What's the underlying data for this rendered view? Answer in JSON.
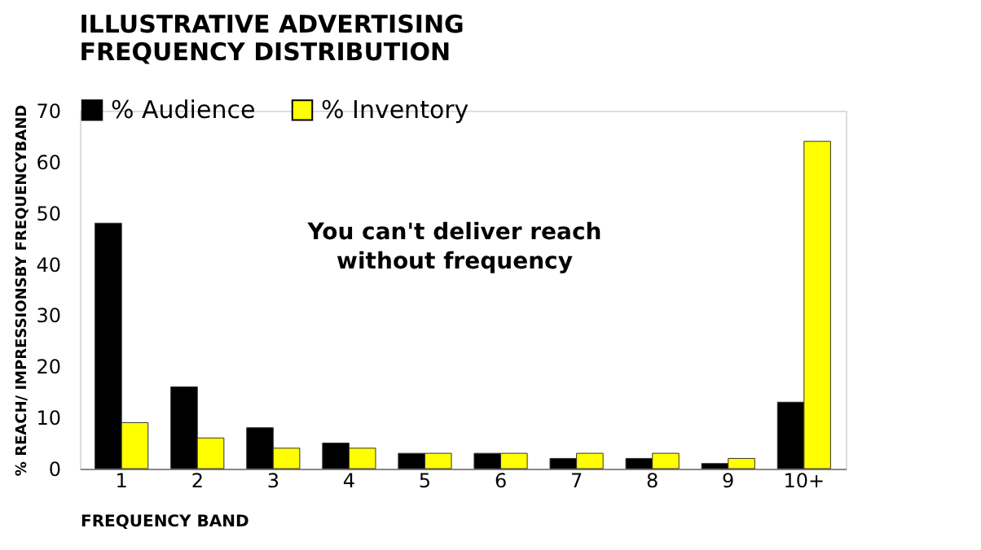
{
  "chart_data": {
    "type": "bar",
    "title": "ILLUSTRATIVE ADVERTISING\nFREQUENCY DISTRIBUTION",
    "xlabel": "FREQUENCY BAND",
    "ylabel": "% REACH/ IMPRESSIONSBY FREQUENCYBAND",
    "categories": [
      "1",
      "2",
      "3",
      "4",
      "5",
      "6",
      "7",
      "8",
      "9",
      "10+"
    ],
    "series": [
      {
        "name": "% Audience",
        "color": "#000000",
        "values": [
          48,
          16,
          8,
          5,
          3,
          3,
          2,
          2,
          1,
          13
        ]
      },
      {
        "name": "% Inventory",
        "color": "#ffff00",
        "values": [
          9,
          6,
          4,
          4,
          3,
          3,
          3,
          3,
          2,
          64
        ]
      }
    ],
    "ylim": [
      0,
      70
    ],
    "yticks": [
      0,
      10,
      20,
      30,
      40,
      50,
      60,
      70
    ],
    "grid": false,
    "legend": "top left",
    "annotations": [
      "You can't deliver reach\nwithout frequency"
    ]
  }
}
